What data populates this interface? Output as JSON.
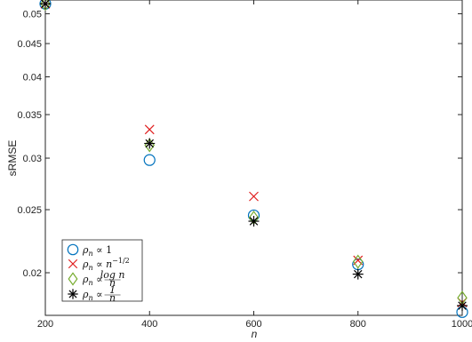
{
  "chart_data": {
    "type": "scatter",
    "title": "",
    "xlabel": "n",
    "ylabel": "sRMSE",
    "xlim": [
      200,
      1000
    ],
    "ylim": [
      0.0172,
      0.0525
    ],
    "y_scale": "log",
    "grid": false,
    "legend_position": "bottom-left",
    "x_ticks": [
      200,
      400,
      600,
      800,
      1000
    ],
    "x_tick_labels": [
      "200",
      "400",
      "600",
      "800",
      "1000"
    ],
    "y_ticks": [
      0.02,
      0.025,
      0.03,
      0.035,
      0.04,
      0.045,
      0.05
    ],
    "y_tick_labels": [
      "0.02",
      "0.025",
      "0.03",
      "0.035",
      "0.04",
      "0.045",
      "0.05"
    ],
    "series": [
      {
        "name": "ρn ∝ 1",
        "marker": "circle",
        "color": "#0072BD",
        "x": [
          200,
          400,
          600,
          800,
          1000
        ],
        "y": [
          0.0518,
          0.0298,
          0.0245,
          0.0206,
          0.0174
        ]
      },
      {
        "name": "ρn ∝ n^(-1/2)",
        "marker": "x",
        "color": "#E02020",
        "x": [
          200,
          400,
          600,
          800,
          1000
        ],
        "y": [
          0.0518,
          0.0332,
          0.0262,
          0.0209,
          0.018
        ]
      },
      {
        "name": "ρn ∝ log n / n",
        "marker": "diamond",
        "color": "#77AC30",
        "x": [
          200,
          400,
          600,
          800,
          1000
        ],
        "y": [
          0.0518,
          0.0314,
          0.0243,
          0.0208,
          0.0183
        ]
      },
      {
        "name": "ρn ∝ 1/n",
        "marker": "asterisk",
        "color": "#000000",
        "x": [
          200,
          400,
          600,
          800,
          1000
        ],
        "y": [
          0.0518,
          0.0316,
          0.024,
          0.0199,
          0.0178
        ]
      }
    ],
    "legend": {
      "entries": [
        {
          "prefix": "ρ",
          "sub": "n",
          "rel": " ∝ ",
          "expr": "1"
        },
        {
          "prefix": "ρ",
          "sub": "n",
          "rel": " ∝ ",
          "expr": "n",
          "sup": "−1/2"
        },
        {
          "prefix": "ρ",
          "sub": "n",
          "rel": " ∝ ",
          "num": "log n",
          "den": "n"
        },
        {
          "prefix": "ρ",
          "sub": "n",
          "rel": " ∝ ",
          "num": "1",
          "den": "n"
        }
      ]
    }
  }
}
